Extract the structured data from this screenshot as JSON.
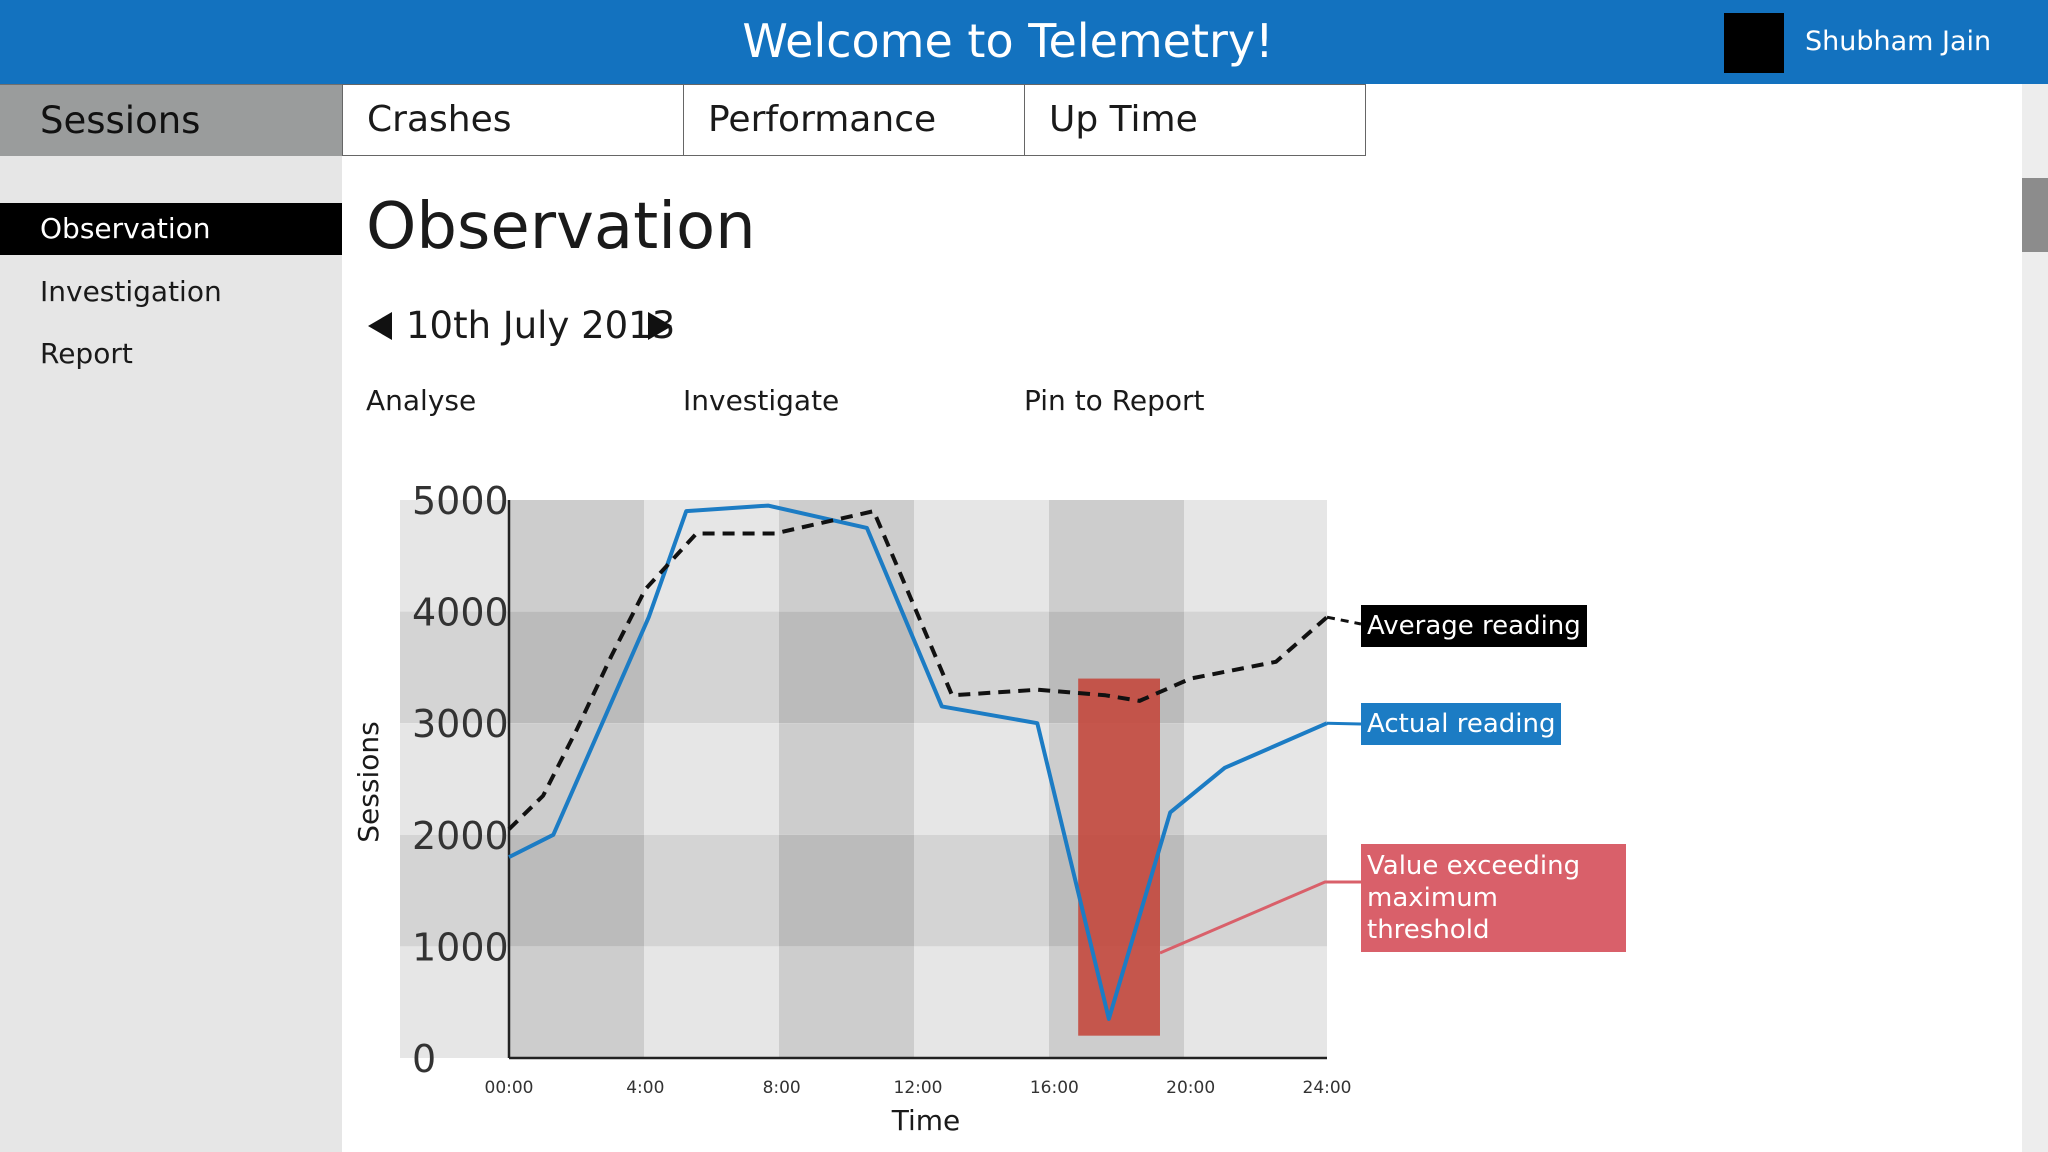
{
  "header": {
    "title": "Welcome to Telemetry!",
    "user_name": "Shubham Jain"
  },
  "sidebar": {
    "section_tab": "Sessions",
    "items": [
      {
        "label": "Observation",
        "active": true
      },
      {
        "label": "Investigation",
        "active": false
      },
      {
        "label": "Report",
        "active": false
      }
    ]
  },
  "tabs": [
    "Crashes",
    "Performance",
    "Up Time"
  ],
  "main": {
    "title": "Observation",
    "date": "10th July 2013",
    "actions": [
      "Analyse",
      "Investigate",
      "Pin to Report"
    ]
  },
  "colors": {
    "header": "#1372bf",
    "actual": "#1c7cc4",
    "average": "#111111",
    "threshold": "#c4453a",
    "threshold_label": "#d9606a"
  },
  "chart_data": {
    "type": "line",
    "xlabel": "Time",
    "ylabel": "Sessions",
    "x_ticks": [
      "00:00",
      "4:00",
      "8:00",
      "12:00",
      "16:00",
      "20:00",
      "24:00"
    ],
    "y_ticks": [
      "5000",
      "4000",
      "3000",
      "2000",
      "1000",
      "0"
    ],
    "xlim": [
      0,
      24
    ],
    "ylim": [
      0,
      5000
    ],
    "series": [
      {
        "name": "Average reading",
        "style": "dashed",
        "x": [
          0,
          1,
          2,
          3,
          4,
          5.5,
          7.8,
          10.7,
          13,
          15.5,
          17.5,
          18.5,
          20,
          22.5,
          24
        ],
        "y": [
          2050,
          2350,
          2950,
          3600,
          4200,
          4700,
          4700,
          4900,
          3250,
          3300,
          3250,
          3200,
          3400,
          3550,
          3950
        ]
      },
      {
        "name": "Actual reading",
        "style": "solid",
        "x": [
          0,
          1.3,
          4.1,
          5.2,
          7.6,
          10.5,
          12.7,
          15.5,
          17.6,
          19.4,
          21,
          24
        ],
        "y": [
          1800,
          2000,
          3950,
          4900,
          4950,
          4750,
          3150,
          3000,
          350,
          2200,
          2600,
          3000
        ]
      }
    ],
    "highlight": {
      "label": "Value exceeding maximum threshold",
      "x_range": [
        16.7,
        19.1
      ],
      "y_range": [
        200,
        3400
      ]
    },
    "shade_bands": true
  }
}
